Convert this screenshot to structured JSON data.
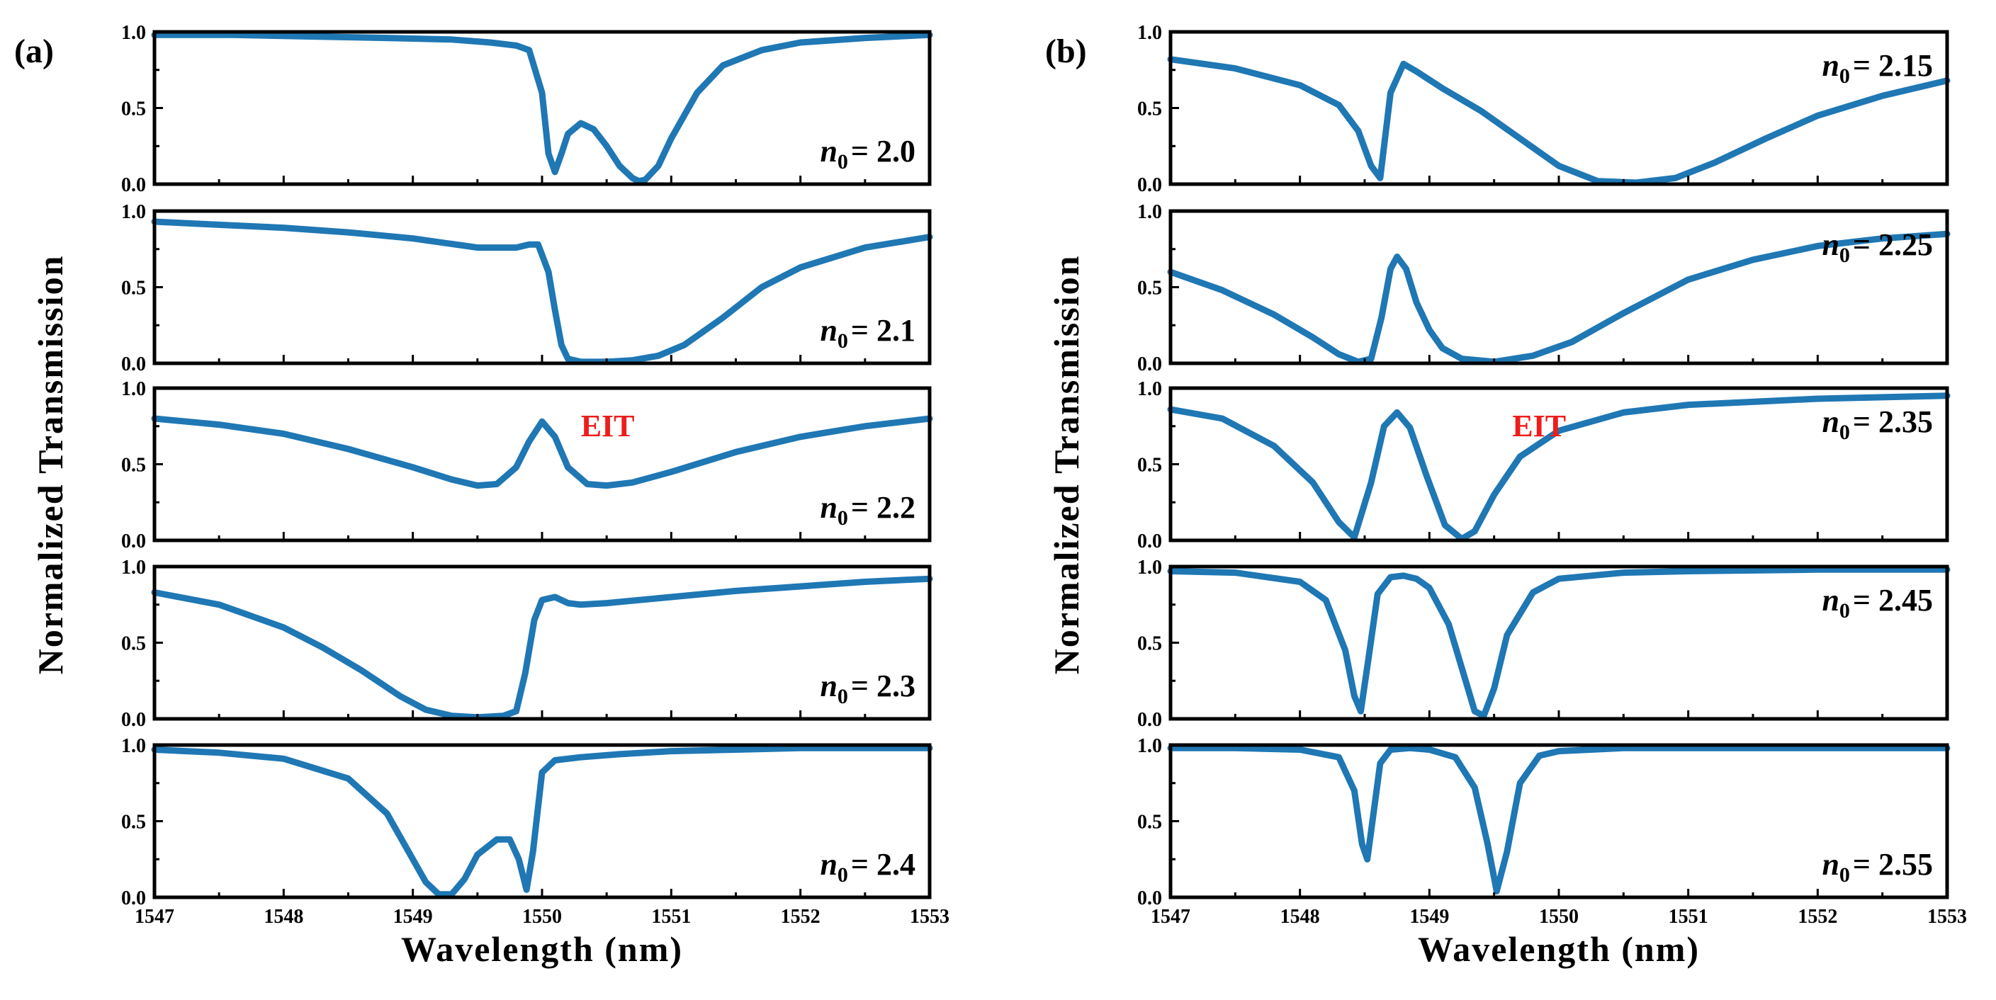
{
  "figure": {
    "curve_color": "#1f77b4",
    "annotation_color": "#ee1c1c",
    "ylabel": "Normalized Transmission"
  },
  "chart_data": [
    {
      "type": "line",
      "panel_label": "(a)",
      "xlabel": "Wavelength (nm)",
      "xlim": [
        1547,
        1553
      ],
      "x_ticks": [
        "1547",
        "1548",
        "1549",
        "1550",
        "1551",
        "1552",
        "1553"
      ],
      "ylim": [
        0,
        1
      ],
      "y_ticks": [
        "0.0",
        "0.5",
        "1.0"
      ],
      "series": [
        {
          "label_prefix": "n",
          "label_sub": "0",
          "label_value": "= 2.0",
          "annotation": "",
          "x": [
            1547.0,
            1547.6,
            1548.2,
            1548.8,
            1549.3,
            1549.6,
            1549.8,
            1549.9,
            1550.0,
            1550.05,
            1550.1,
            1550.15,
            1550.2,
            1550.3,
            1550.4,
            1550.5,
            1550.6,
            1550.7,
            1550.75,
            1550.8,
            1550.9,
            1551.0,
            1551.2,
            1551.4,
            1551.7,
            1552.0,
            1552.5,
            1553.0
          ],
          "y": [
            0.98,
            0.98,
            0.97,
            0.96,
            0.95,
            0.93,
            0.91,
            0.88,
            0.6,
            0.2,
            0.08,
            0.2,
            0.33,
            0.4,
            0.36,
            0.25,
            0.12,
            0.04,
            0.02,
            0.03,
            0.12,
            0.3,
            0.6,
            0.78,
            0.88,
            0.93,
            0.96,
            0.98
          ]
        },
        {
          "label_prefix": "n",
          "label_sub": "0",
          "label_value": "= 2.1",
          "annotation": "",
          "x": [
            1547.0,
            1547.5,
            1548.0,
            1548.5,
            1549.0,
            1549.5,
            1549.8,
            1549.9,
            1549.97,
            1550.05,
            1550.1,
            1550.15,
            1550.2,
            1550.3,
            1550.5,
            1550.7,
            1550.9,
            1551.1,
            1551.4,
            1551.7,
            1552.0,
            1552.5,
            1553.0
          ],
          "y": [
            0.93,
            0.91,
            0.89,
            0.86,
            0.82,
            0.76,
            0.76,
            0.78,
            0.78,
            0.6,
            0.35,
            0.12,
            0.03,
            0.01,
            0.01,
            0.02,
            0.05,
            0.12,
            0.3,
            0.5,
            0.63,
            0.76,
            0.83
          ]
        },
        {
          "label_prefix": "n",
          "label_sub": "0",
          "label_value": "= 2.2",
          "annotation": "EIT",
          "x": [
            1547.0,
            1547.5,
            1548.0,
            1548.5,
            1549.0,
            1549.3,
            1549.5,
            1549.65,
            1549.8,
            1549.9,
            1550.0,
            1550.1,
            1550.2,
            1550.35,
            1550.5,
            1550.7,
            1551.0,
            1551.5,
            1552.0,
            1552.5,
            1553.0
          ],
          "y": [
            0.8,
            0.76,
            0.7,
            0.6,
            0.48,
            0.4,
            0.36,
            0.37,
            0.48,
            0.65,
            0.78,
            0.68,
            0.48,
            0.37,
            0.36,
            0.38,
            0.45,
            0.58,
            0.68,
            0.75,
            0.8
          ]
        },
        {
          "label_prefix": "n",
          "label_sub": "0",
          "label_value": "= 2.3",
          "annotation": "",
          "x": [
            1547.0,
            1547.5,
            1548.0,
            1548.3,
            1548.6,
            1548.9,
            1549.1,
            1549.3,
            1549.5,
            1549.7,
            1549.8,
            1549.87,
            1549.94,
            1550.0,
            1550.1,
            1550.2,
            1550.3,
            1550.5,
            1551.0,
            1551.5,
            1552.0,
            1552.5,
            1553.0
          ],
          "y": [
            0.83,
            0.75,
            0.6,
            0.47,
            0.32,
            0.15,
            0.06,
            0.02,
            0.01,
            0.02,
            0.05,
            0.3,
            0.65,
            0.78,
            0.8,
            0.76,
            0.75,
            0.76,
            0.8,
            0.84,
            0.87,
            0.9,
            0.92
          ]
        },
        {
          "label_prefix": "n",
          "label_sub": "0",
          "label_value": "= 2.4",
          "annotation": "",
          "x": [
            1547.0,
            1547.5,
            1548.0,
            1548.5,
            1548.8,
            1549.0,
            1549.1,
            1549.2,
            1549.3,
            1549.4,
            1549.5,
            1549.65,
            1549.75,
            1549.82,
            1549.88,
            1549.93,
            1550.0,
            1550.1,
            1550.3,
            1550.6,
            1551.0,
            1551.5,
            1552.0,
            1553.0
          ],
          "y": [
            0.97,
            0.95,
            0.91,
            0.78,
            0.55,
            0.25,
            0.1,
            0.02,
            0.02,
            0.12,
            0.28,
            0.38,
            0.38,
            0.25,
            0.05,
            0.3,
            0.82,
            0.9,
            0.92,
            0.94,
            0.96,
            0.97,
            0.98,
            0.98
          ]
        }
      ]
    },
    {
      "type": "line",
      "panel_label": "(b)",
      "xlabel": "Wavelength (nm)",
      "xlim": [
        1547,
        1553
      ],
      "x_ticks": [
        "1547",
        "1548",
        "1549",
        "1550",
        "1551",
        "1552",
        "1553"
      ],
      "ylim": [
        0,
        1
      ],
      "y_ticks": [
        "0.0",
        "0.5",
        "1.0"
      ],
      "series": [
        {
          "label_prefix": "n",
          "label_sub": "0",
          "label_value": "= 2.15",
          "annotation": "",
          "x": [
            1547.0,
            1547.5,
            1548.0,
            1548.3,
            1548.45,
            1548.55,
            1548.62,
            1548.7,
            1548.8,
            1548.9,
            1549.1,
            1549.4,
            1549.7,
            1550.0,
            1550.3,
            1550.6,
            1550.9,
            1551.2,
            1551.6,
            1552.0,
            1552.5,
            1553.0
          ],
          "y": [
            0.82,
            0.76,
            0.65,
            0.52,
            0.35,
            0.12,
            0.04,
            0.6,
            0.79,
            0.74,
            0.63,
            0.48,
            0.3,
            0.12,
            0.02,
            0.01,
            0.04,
            0.14,
            0.3,
            0.45,
            0.58,
            0.68
          ]
        },
        {
          "label_prefix": "n",
          "label_sub": "0",
          "label_value": "= 2.25",
          "annotation": "",
          "x": [
            1547.0,
            1547.4,
            1547.8,
            1548.1,
            1548.3,
            1548.45,
            1548.55,
            1548.63,
            1548.7,
            1548.75,
            1548.82,
            1548.9,
            1549.0,
            1549.1,
            1549.25,
            1549.5,
            1549.8,
            1550.1,
            1550.5,
            1551.0,
            1551.5,
            1552.0,
            1552.5,
            1553.0
          ],
          "y": [
            0.6,
            0.48,
            0.32,
            0.17,
            0.06,
            0.01,
            0.03,
            0.3,
            0.62,
            0.7,
            0.62,
            0.4,
            0.22,
            0.1,
            0.03,
            0.01,
            0.05,
            0.14,
            0.33,
            0.55,
            0.68,
            0.77,
            0.82,
            0.85
          ]
        },
        {
          "label_prefix": "n",
          "label_sub": "0",
          "label_value": "= 2.35",
          "annotation": "EIT",
          "x": [
            1547.0,
            1547.4,
            1547.8,
            1548.1,
            1548.3,
            1548.42,
            1548.55,
            1548.65,
            1548.75,
            1548.85,
            1548.98,
            1549.12,
            1549.25,
            1549.35,
            1549.5,
            1549.7,
            1550.0,
            1550.5,
            1551.0,
            1551.5,
            1552.0,
            1553.0
          ],
          "y": [
            0.86,
            0.8,
            0.62,
            0.38,
            0.12,
            0.02,
            0.38,
            0.75,
            0.84,
            0.74,
            0.42,
            0.1,
            0.01,
            0.06,
            0.3,
            0.55,
            0.72,
            0.84,
            0.89,
            0.91,
            0.93,
            0.95
          ]
        },
        {
          "label_prefix": "n",
          "label_sub": "0",
          "label_value": "= 2.45",
          "annotation": "",
          "x": [
            1547.0,
            1547.5,
            1548.0,
            1548.2,
            1548.35,
            1548.42,
            1548.47,
            1548.53,
            1548.6,
            1548.7,
            1548.8,
            1548.9,
            1549.0,
            1549.15,
            1549.28,
            1549.35,
            1549.42,
            1549.5,
            1549.6,
            1549.8,
            1550.0,
            1550.5,
            1551.0,
            1552.0,
            1553.0
          ],
          "y": [
            0.97,
            0.96,
            0.9,
            0.78,
            0.45,
            0.15,
            0.05,
            0.4,
            0.82,
            0.93,
            0.94,
            0.92,
            0.86,
            0.62,
            0.25,
            0.05,
            0.02,
            0.2,
            0.55,
            0.83,
            0.92,
            0.96,
            0.97,
            0.98,
            0.98
          ]
        },
        {
          "label_prefix": "n",
          "label_sub": "0",
          "label_value": "= 2.55",
          "annotation": "",
          "x": [
            1547.0,
            1547.5,
            1548.0,
            1548.3,
            1548.42,
            1548.48,
            1548.52,
            1548.56,
            1548.62,
            1548.7,
            1548.85,
            1549.0,
            1549.2,
            1549.35,
            1549.45,
            1549.52,
            1549.6,
            1549.7,
            1549.85,
            1550.0,
            1550.5,
            1551.0,
            1552.0,
            1553.0
          ],
          "y": [
            0.98,
            0.98,
            0.97,
            0.92,
            0.7,
            0.35,
            0.25,
            0.5,
            0.88,
            0.97,
            0.98,
            0.97,
            0.92,
            0.72,
            0.35,
            0.04,
            0.3,
            0.75,
            0.93,
            0.96,
            0.98,
            0.98,
            0.98,
            0.98
          ]
        }
      ]
    }
  ]
}
